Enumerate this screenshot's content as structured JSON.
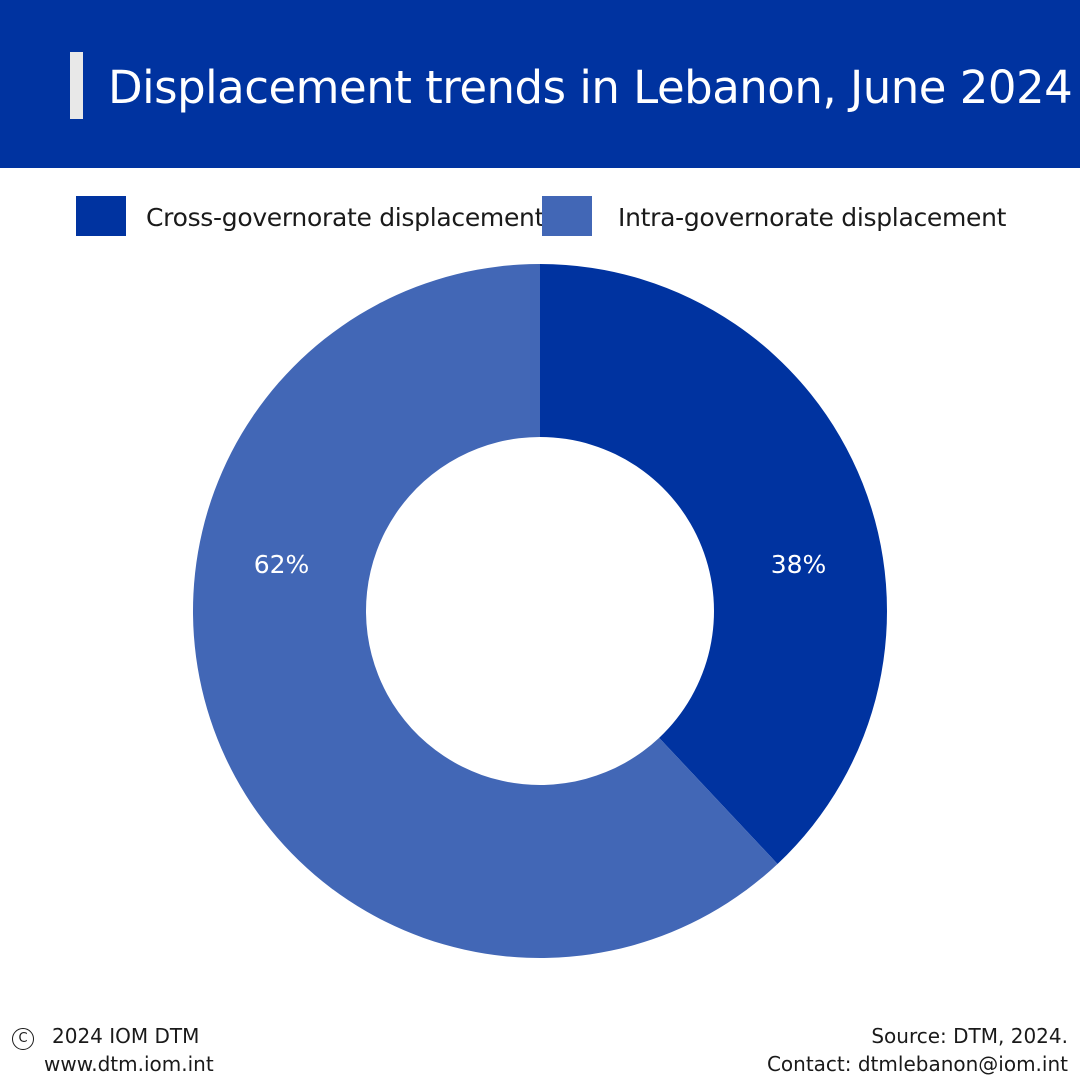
{
  "header": {
    "title": "Displacement trends in Lebanon, June 2024",
    "background": "#0033a0"
  },
  "chart_data": {
    "type": "pie",
    "subtype": "donut",
    "title": "Displacement trends in Lebanon, June 2024",
    "categories": [
      "Cross-governorate displacement",
      "Intra-governorate displacement"
    ],
    "values": [
      38,
      62
    ],
    "value_labels": [
      "38%",
      "62%"
    ],
    "colors": [
      "#0033a0",
      "#4267b6"
    ],
    "legend_position": "top",
    "start_angle": "12 o'clock",
    "direction": "clockwise"
  },
  "footer": {
    "copyright_icon": "copyright-icon",
    "copyright": "2024 IOM DTM",
    "website": "www.dtm.iom.int",
    "source": "Source: DTM, 2024.",
    "contact": "Contact: dtmlebanon@iom.int"
  }
}
